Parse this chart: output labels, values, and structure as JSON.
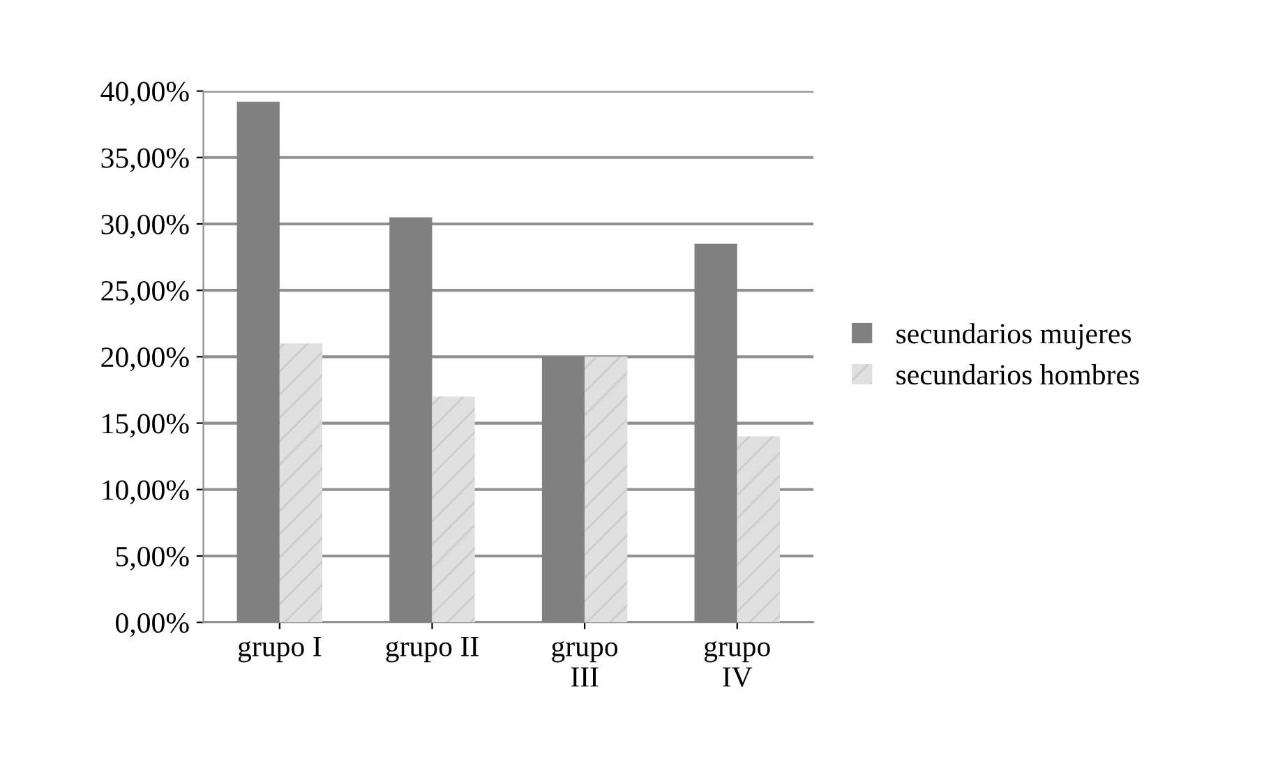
{
  "chart_data": {
    "type": "bar",
    "categories": [
      "grupo I",
      "grupo II",
      "grupo\nIII",
      "grupo\nIV"
    ],
    "series": [
      {
        "name": "secundarios mujeres",
        "color": "#808080",
        "values": [
          39.2,
          30.5,
          20.0,
          28.5
        ]
      },
      {
        "name": "secundarios hombres",
        "color": "#e0e0e0",
        "values": [
          21.0,
          17.0,
          20.0,
          14.0
        ]
      }
    ],
    "ylim": [
      0,
      40
    ],
    "yticks": [
      {
        "value": 0,
        "label": "0,00%"
      },
      {
        "value": 5,
        "label": "5,00%"
      },
      {
        "value": 10,
        "label": "10,00%"
      },
      {
        "value": 15,
        "label": "15,00%"
      },
      {
        "value": 20,
        "label": "20,00%"
      },
      {
        "value": 25,
        "label": "25,00%"
      },
      {
        "value": 30,
        "label": "30,00%"
      },
      {
        "value": 35,
        "label": "35,00%"
      },
      {
        "value": 40,
        "label": "40,00%"
      }
    ],
    "grid": "y",
    "legend": "right"
  }
}
